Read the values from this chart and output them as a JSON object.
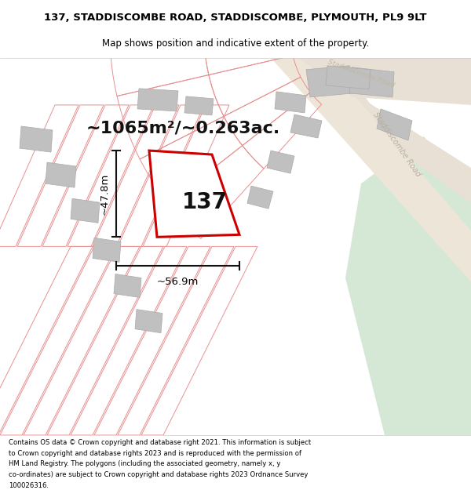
{
  "title_line1": "137, STADDISCOMBE ROAD, STADDISCOMBE, PLYMOUTH, PL9 9LT",
  "title_line2": "Map shows position and indicative extent of the property.",
  "area_text": "~1065m²/~0.263ac.",
  "house_number": "137",
  "dim_width": "~56.9m",
  "dim_height": "~47.8m",
  "footer_lines": [
    "Contains OS data © Crown copyright and database right 2021. This information is subject",
    "to Crown copyright and database rights 2023 and is reproduced with the permission of",
    "HM Land Registry. The polygons (including the associated geometry, namely x, y",
    "co-ordinates) are subject to Crown copyright and database rights 2023 Ordnance Survey",
    "100026316."
  ],
  "bg_map": "#f7f4f0",
  "road_fill": "#e8e0d5",
  "green_fill": "#d5e8d5",
  "plot_red": "#cc0000",
  "building_gray": "#c0c0c0",
  "plot_line_color": "#e89090",
  "dim_line_color": "#111111"
}
